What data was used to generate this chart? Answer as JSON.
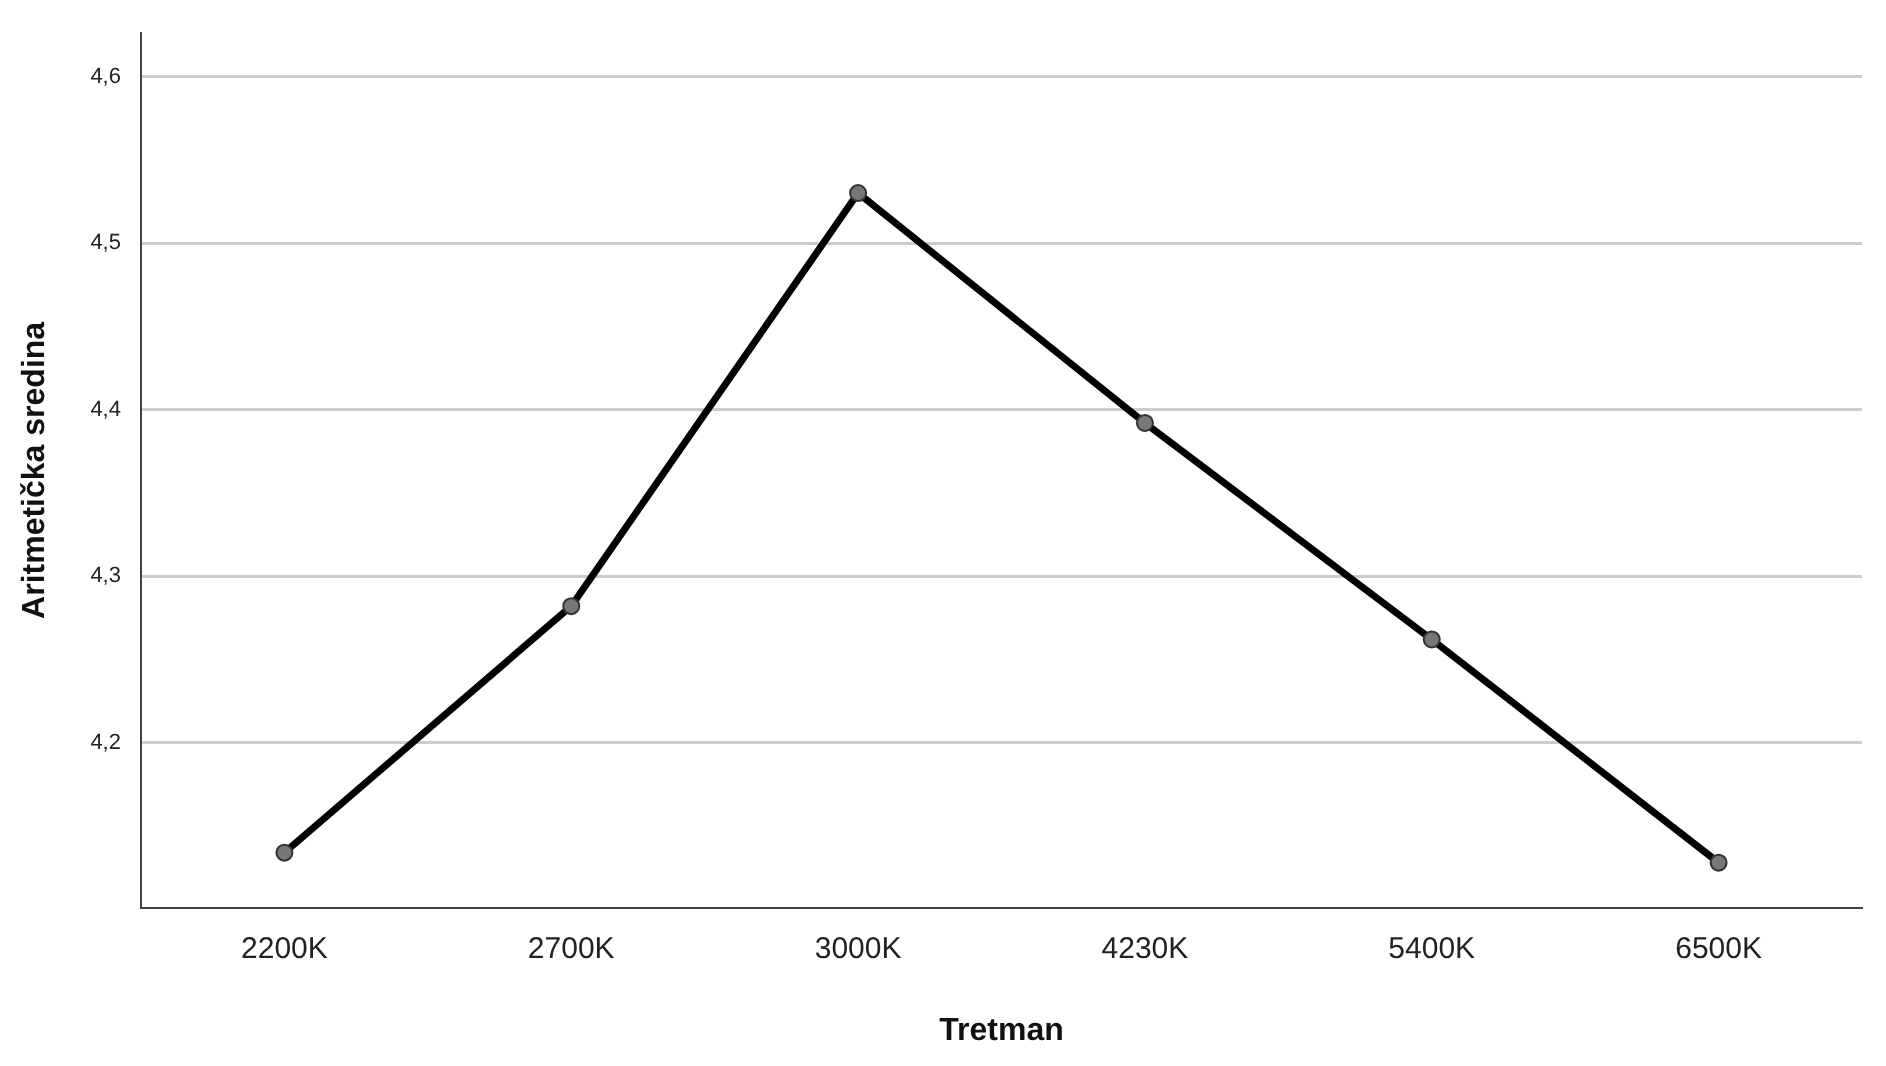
{
  "chart_data": {
    "type": "line",
    "xlabel": "Tretman",
    "ylabel": "Aritmetička sredina",
    "categories": [
      "2200K",
      "2700K",
      "3000K",
      "4230K",
      "5400K",
      "6500K"
    ],
    "series": [
      {
        "color": "#000000",
        "values": [
          4.134,
          4.282,
          4.53,
          4.392,
          4.262,
          4.128
        ]
      }
    ],
    "ylim": [
      4.101,
      4.626
    ],
    "yticks": [
      {
        "value": 4.2,
        "label": "4,2"
      },
      {
        "value": 4.3,
        "label": "4,3"
      },
      {
        "value": 4.4,
        "label": "4,4"
      },
      {
        "value": 4.5,
        "label": "4,5"
      },
      {
        "value": 4.6,
        "label": "4,6"
      }
    ],
    "grid": "y",
    "legend": false,
    "marker": "circle",
    "line_style": "solid"
  }
}
